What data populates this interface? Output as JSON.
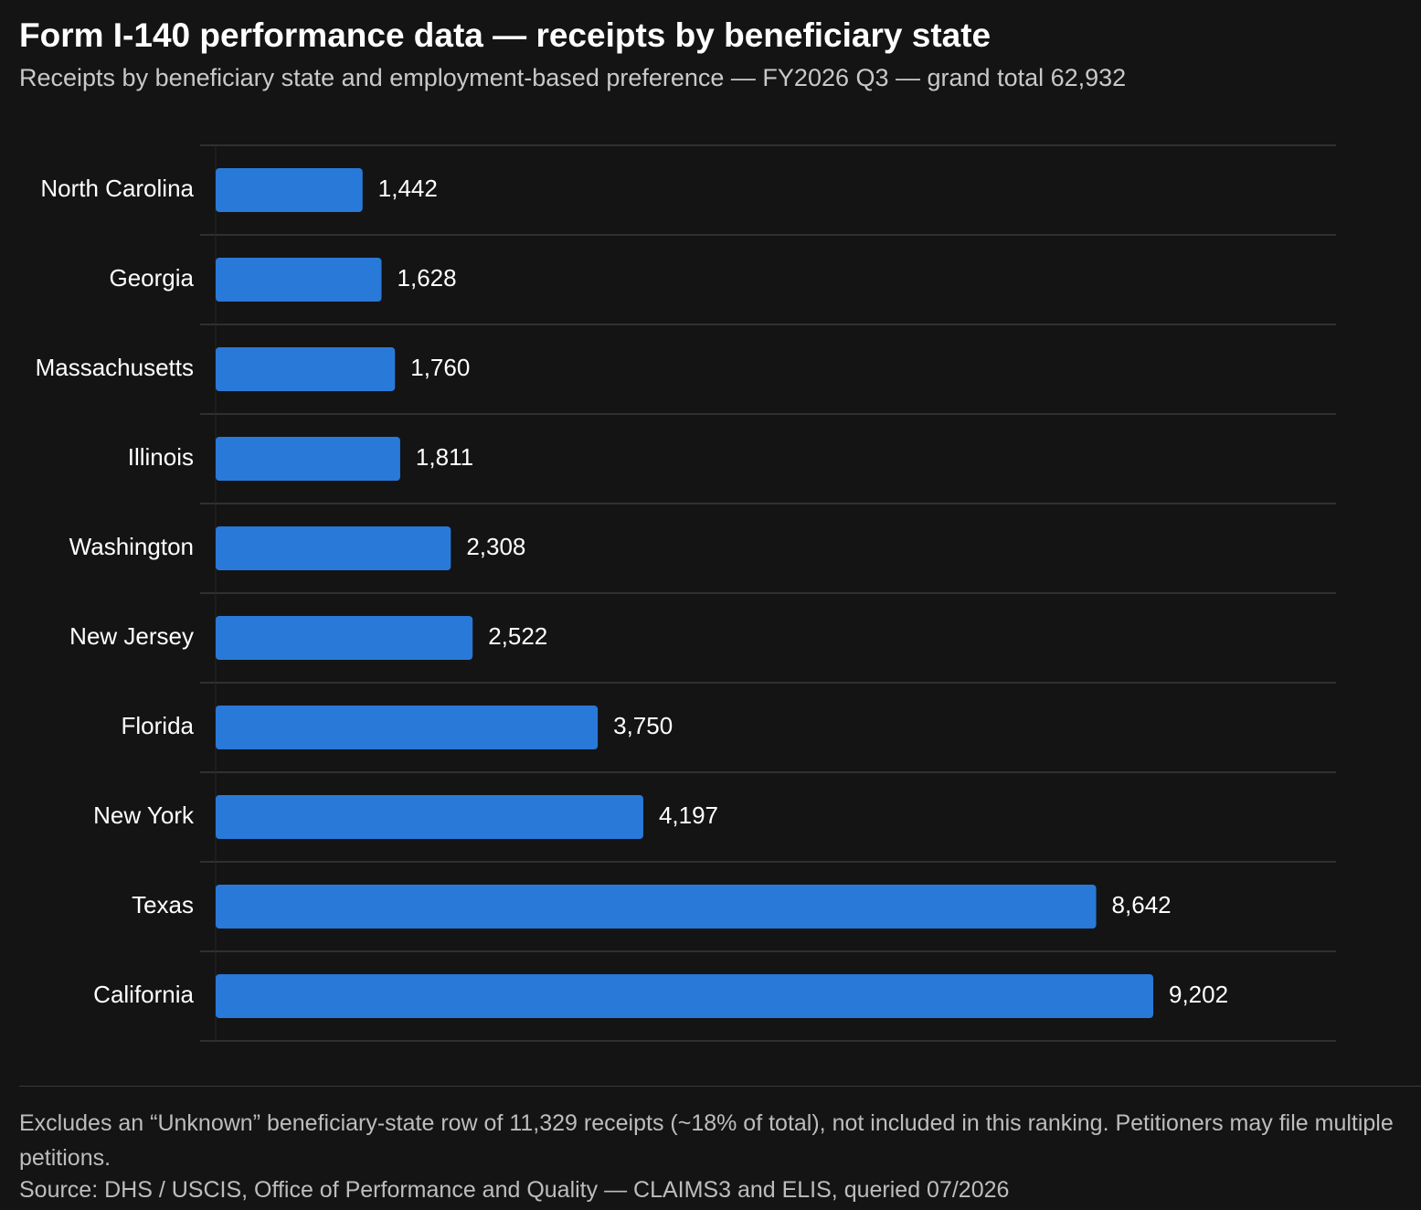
{
  "header": {
    "title": "Form I-140 performance data — receipts by beneficiary state",
    "subtitle": "Receipts by beneficiary state and employment-based preference — FY2026 Q3 — grand total 62,932"
  },
  "chart_data": {
    "type": "bar",
    "orientation": "horizontal",
    "categories": [
      "North Carolina",
      "Georgia",
      "Massachusetts",
      "Illinois",
      "Washington",
      "New Jersey",
      "Florida",
      "New York",
      "Texas",
      "California"
    ],
    "values": [
      1442,
      1628,
      1760,
      1811,
      2308,
      2522,
      3750,
      4197,
      8642,
      9202
    ],
    "value_labels": [
      "1,442",
      "1,628",
      "1,760",
      "1,811",
      "2,308",
      "2,522",
      "3,750",
      "4,197",
      "8,642",
      "9,202"
    ],
    "xlim": [
      0,
      11000
    ],
    "grid": "horizontal row separators",
    "legend": "none",
    "colors": {
      "bar": "#2979d9",
      "background": "#141414",
      "grid": "#3a3a3a",
      "text": "#ffffff"
    }
  },
  "footer": {
    "note": "Excludes an “Unknown” beneficiary-state row of 11,329 receipts (~18% of total), not included in this ranking. Petitioners may file multiple petitions.",
    "source": "Source: DHS / USCIS, Office of Performance and Quality — CLAIMS3 and ELIS, queried 07/2026"
  }
}
